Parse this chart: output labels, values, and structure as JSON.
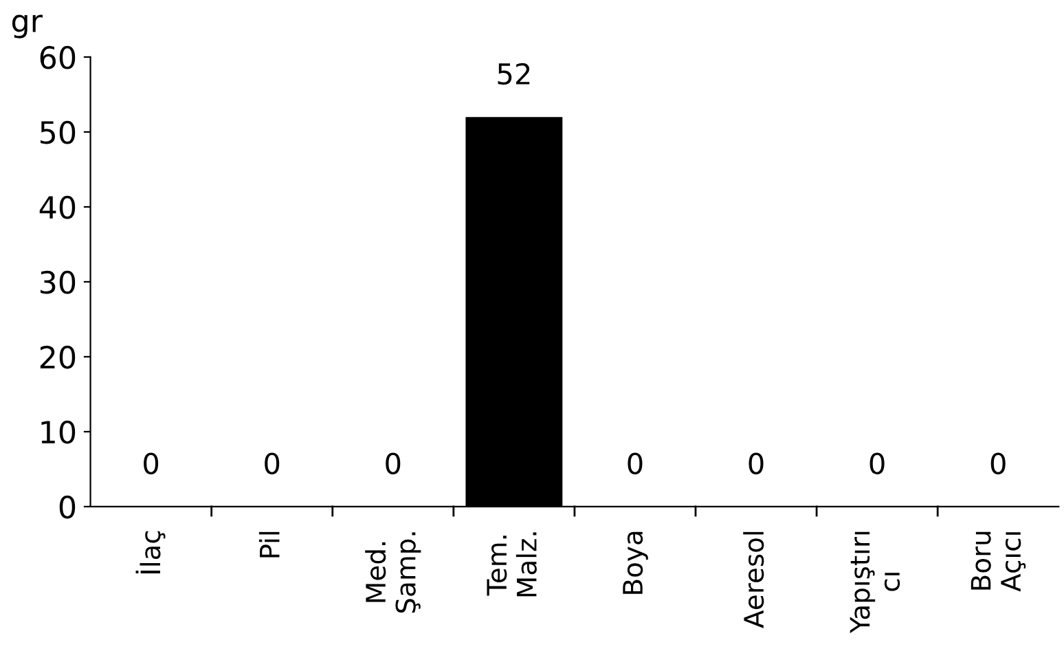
{
  "chart_data": {
    "type": "bar",
    "ylabel": "gr",
    "categories": [
      "İlaç",
      "Pil",
      "Med.\nŞamp.",
      "Tem.\nMalz.",
      "Boya",
      "Aeresol",
      "Yapıştırı\ncı",
      "Boru\nAçıcı"
    ],
    "values": [
      0,
      0,
      0,
      52,
      0,
      0,
      0,
      0
    ],
    "color": "#000000",
    "ylim": [
      0,
      60
    ],
    "yticks": [
      0,
      10,
      20,
      30,
      40,
      50,
      60
    ],
    "data_labels": true,
    "grid": false,
    "legend": false
  }
}
